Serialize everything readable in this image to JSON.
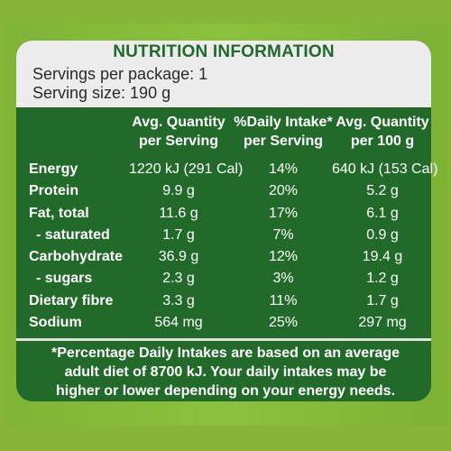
{
  "label": {
    "title": "NUTRITION INFORMATION",
    "servings_per_package": "Servings per package: 1",
    "serving_size": "Serving size: 190 g",
    "columns": {
      "c1": [
        "Avg. Quantity",
        "per Serving"
      ],
      "c2": [
        "%Daily Intake*",
        "per Serving"
      ],
      "c3": [
        "Avg. Quantity",
        "per 100 g"
      ]
    },
    "rows": [
      {
        "name": "Energy",
        "per_serving": "1220 kJ (291 Cal)",
        "daily_intake": "14%",
        "per_100g": "640 kJ (153 Cal)"
      },
      {
        "name": "Protein",
        "per_serving": "9.9 g",
        "daily_intake": "20%",
        "per_100g": "5.2 g"
      },
      {
        "name": "Fat, total",
        "per_serving": "11.6 g",
        "daily_intake": "17%",
        "per_100g": "6.1 g"
      },
      {
        "name": "- saturated",
        "per_serving": "1.7 g",
        "daily_intake": "7%",
        "per_100g": "0.9 g"
      },
      {
        "name": "Carbohydrate",
        "per_serving": "36.9 g",
        "daily_intake": "12%",
        "per_100g": "19.4 g"
      },
      {
        "name": "- sugars",
        "per_serving": "2.3 g",
        "daily_intake": "3%",
        "per_100g": "1.2 g"
      },
      {
        "name": "Dietary fibre",
        "per_serving": "3.3 g",
        "daily_intake": "11%",
        "per_100g": "1.7 g"
      },
      {
        "name": "Sodium",
        "per_serving": "564 mg",
        "daily_intake": "25%",
        "per_100g": "297 mg"
      }
    ],
    "footnote": [
      "*Percentage Daily Intakes are based on an average",
      "adult diet of 8700 kJ. Your daily intakes may be",
      "higher or lower depending on your energy needs."
    ],
    "colors": {
      "label_green": "#226a2a",
      "header_bg": "#ececec",
      "package_green": "#86b53a"
    }
  }
}
